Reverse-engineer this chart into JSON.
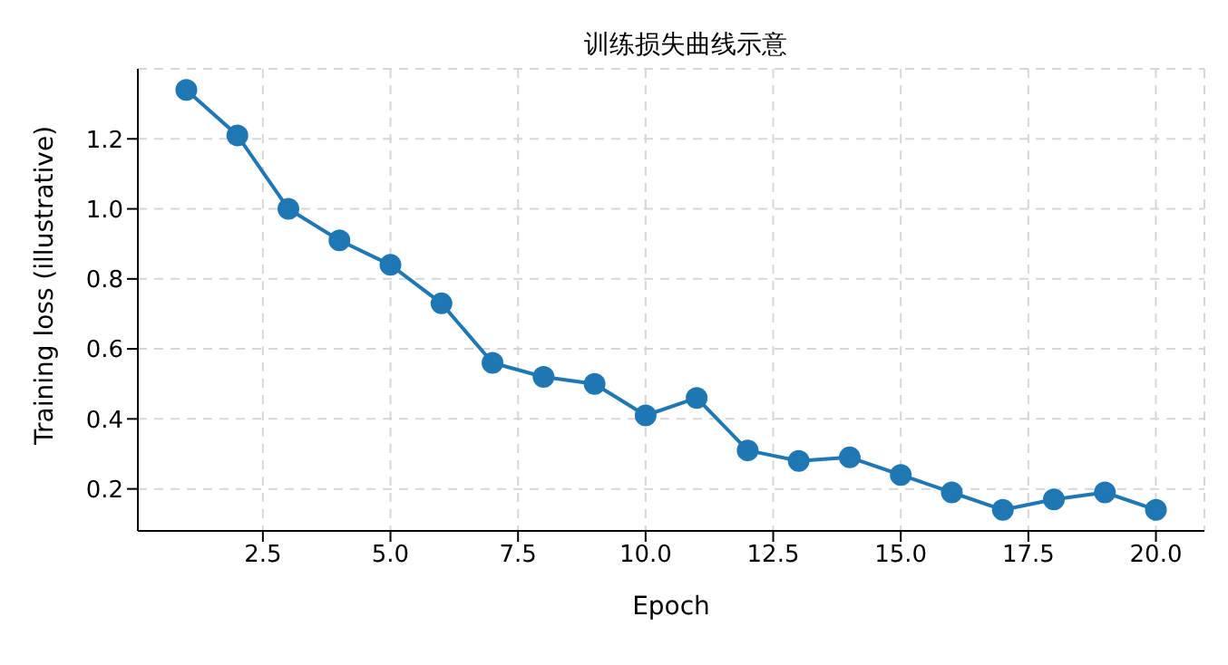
{
  "chart_data": {
    "type": "line",
    "title": "训练损失曲线示意",
    "xlabel": "Epoch",
    "ylabel": "Training loss (illustrative)",
    "x": [
      1,
      2,
      3,
      4,
      5,
      6,
      7,
      8,
      9,
      10,
      11,
      12,
      13,
      14,
      15,
      16,
      17,
      18,
      19,
      20
    ],
    "series": [
      {
        "color": "#1f77b4",
        "values": [
          1.34,
          1.21,
          1.0,
          0.91,
          0.84,
          0.73,
          0.56,
          0.52,
          0.5,
          0.41,
          0.46,
          0.31,
          0.28,
          0.29,
          0.24,
          0.19,
          0.14,
          0.17,
          0.19,
          0.14
        ]
      }
    ],
    "xlim": [
      0.05,
      20.95
    ],
    "xticks": [
      {
        "value": 2.5,
        "label": "2.5"
      },
      {
        "value": 5,
        "label": "5.0"
      },
      {
        "value": 7.5,
        "label": "7.5"
      },
      {
        "value": 10,
        "label": "10.0"
      },
      {
        "value": 12.5,
        "label": "12.5"
      },
      {
        "value": 15,
        "label": "15.0"
      },
      {
        "value": 17.5,
        "label": "17.5"
      },
      {
        "value": 20,
        "label": "20.0"
      }
    ],
    "ylim": [
      0.08,
      1.4
    ],
    "yticks": [
      0.2,
      0.4,
      0.6,
      0.8,
      {
        "value": 1,
        "label": "1.0"
      },
      1.2
    ],
    "grid": true,
    "marker": "circle",
    "line_style": "solid"
  }
}
